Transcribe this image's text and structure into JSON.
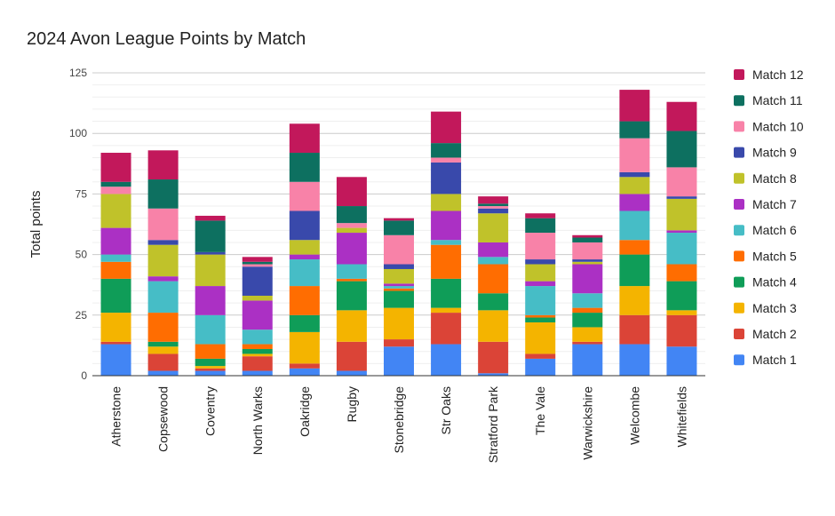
{
  "chart_data": {
    "type": "bar",
    "stacked": true,
    "title": "2024 Avon League Points by Match",
    "xlabel": "",
    "ylabel": "Total points",
    "ylim": [
      0,
      125
    ],
    "yticks": [
      0,
      25,
      50,
      75,
      100,
      125
    ],
    "grid": true,
    "legend_position": "right",
    "categories": [
      "Atherstone",
      "Copsewood",
      "Coventry",
      "North Warks",
      "Oakridge",
      "Rugby",
      "Stonebridge",
      "Str Oaks",
      "Stratford Park",
      "The Vale",
      "Warwickshire",
      "Welcombe",
      "Whitefields"
    ],
    "series": [
      {
        "name": "Match 1",
        "color": "#4285f4",
        "values": [
          13,
          2,
          2,
          2,
          3,
          2,
          12,
          13,
          1,
          7,
          13,
          13,
          12
        ]
      },
      {
        "name": "Match 2",
        "color": "#db4437",
        "values": [
          1,
          7,
          1,
          6,
          2,
          12,
          3,
          13,
          13,
          2,
          1,
          12,
          13
        ]
      },
      {
        "name": "Match 3",
        "color": "#f4b400",
        "values": [
          12,
          3,
          1,
          1,
          13,
          13,
          13,
          2,
          13,
          13,
          6,
          12,
          2
        ]
      },
      {
        "name": "Match 4",
        "color": "#0f9d58",
        "values": [
          14,
          2,
          3,
          2,
          7,
          12,
          7,
          12,
          7,
          2,
          6,
          13,
          12
        ]
      },
      {
        "name": "Match 5",
        "color": "#ff6d01",
        "values": [
          7,
          12,
          6,
          2,
          12,
          1,
          1,
          14,
          12,
          1,
          2,
          6,
          7
        ]
      },
      {
        "name": "Match 6",
        "color": "#46bdc6",
        "values": [
          3,
          13,
          12,
          6,
          11,
          6,
          1,
          2,
          3,
          12,
          6,
          12,
          13
        ]
      },
      {
        "name": "Match 7",
        "color": "#ab30c4",
        "values": [
          11,
          2,
          12,
          12,
          2,
          13,
          1,
          12,
          6,
          2,
          12,
          7,
          1
        ]
      },
      {
        "name": "Match 8",
        "color": "#c0c22a",
        "values": [
          14,
          13,
          13,
          2,
          6,
          2,
          6,
          7,
          12,
          7,
          1,
          7,
          13
        ]
      },
      {
        "name": "Match 9",
        "color": "#3949ab",
        "values": [
          0,
          2,
          1,
          12,
          12,
          0,
          2,
          13,
          2,
          2,
          1,
          2,
          1
        ]
      },
      {
        "name": "Match 10",
        "color": "#f882a8",
        "values": [
          3,
          13,
          0,
          1,
          12,
          2,
          12,
          2,
          1,
          11,
          7,
          14,
          12
        ]
      },
      {
        "name": "Match 11",
        "color": "#0d7060",
        "values": [
          2,
          12,
          13,
          1,
          12,
          7,
          6,
          6,
          1,
          6,
          2,
          7,
          15
        ]
      },
      {
        "name": "Match 12",
        "color": "#c2185b",
        "values": [
          12,
          12,
          2,
          2,
          12,
          12,
          1,
          13,
          3,
          2,
          1,
          13,
          12
        ]
      }
    ]
  }
}
